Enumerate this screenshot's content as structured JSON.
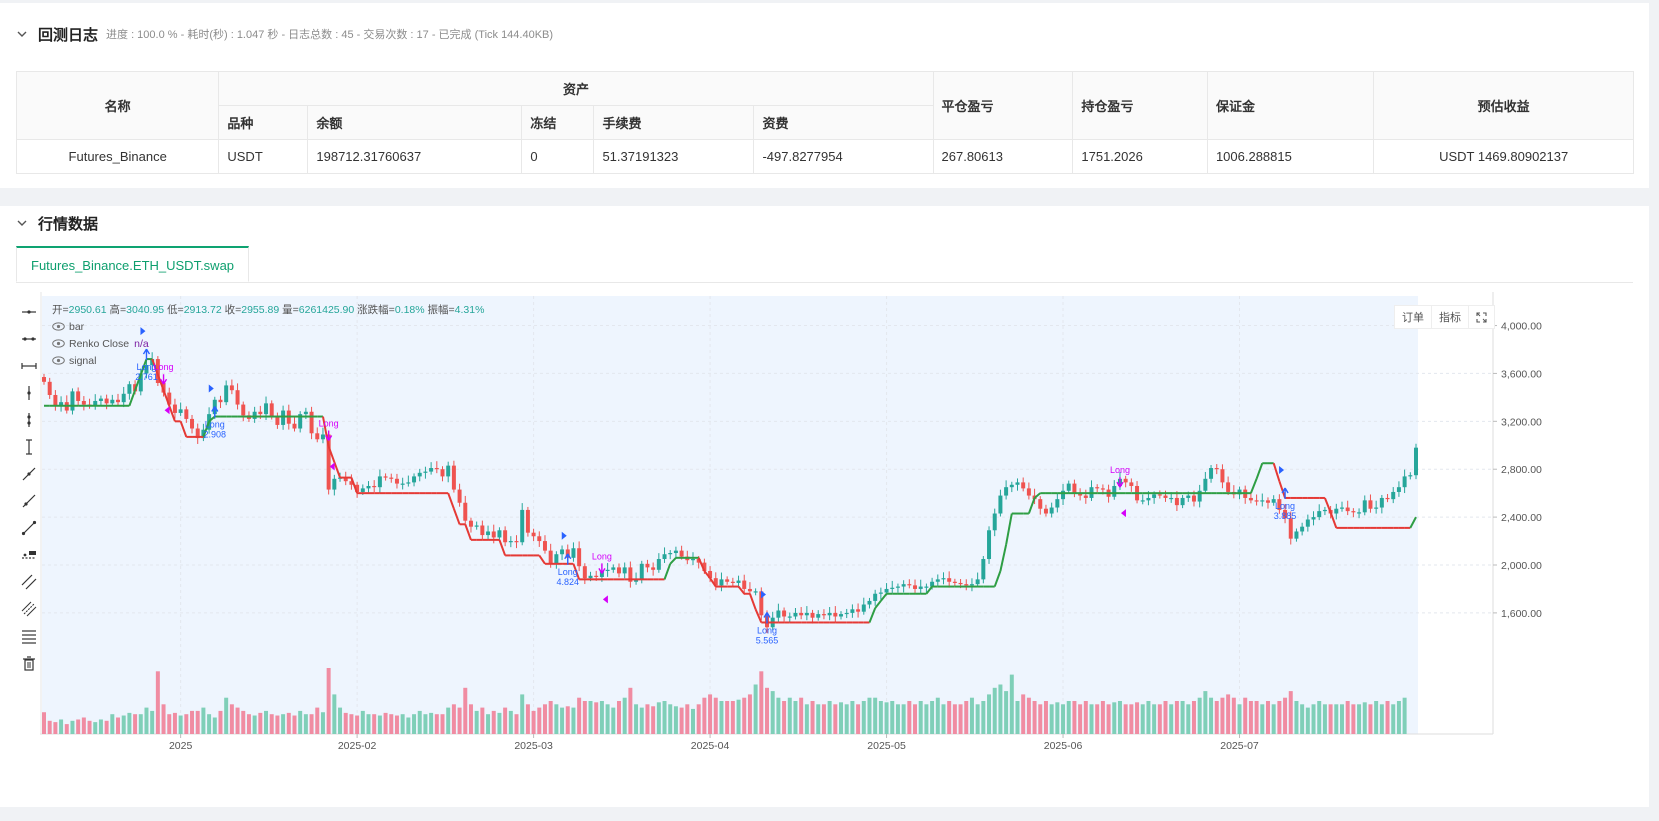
{
  "log_section": {
    "title": "回测日志",
    "meta": "进度 : 100.0 % - 耗时(秒) : 1.047 秒 - 日志总数 : 45 - 交易次数 : 17 - 已完成 (Tick 144.40KB)"
  },
  "assets_table": {
    "col_name": "名称",
    "col_assets": "资产",
    "col_close_pnl": "平仓盈亏",
    "col_position_pnl": "持仓盈亏",
    "col_margin": "保证金",
    "col_est_profit": "预估收益",
    "sub_symbol": "品种",
    "sub_balance": "余额",
    "sub_frozen": "冻结",
    "sub_fee": "手续费",
    "sub_funding": "资费",
    "row": {
      "name": "Futures_Binance",
      "symbol": "USDT",
      "balance": "198712.31760637",
      "frozen": "0",
      "fee": "51.37191323",
      "funding": "-497.8277954",
      "close_pnl": "267.80613",
      "position_pnl": "1751.2026",
      "margin": "1006.288815",
      "est_profit": "USDT 1469.80902137"
    }
  },
  "market_section": {
    "title": "行情数据",
    "tab": "Futures_Binance.ETH_USDT.swap"
  },
  "ohlc": {
    "open_label": "开=",
    "open": "2950.61",
    "high_label": "高=",
    "high": "3040.95",
    "low_label": "低=",
    "low": "2913.72",
    "close_label": "收=",
    "close": "2955.89",
    "vol_label": "量=",
    "vol": "6261425.90",
    "chg_label": "涨跌幅=",
    "chg": "0.18%",
    "amp_label": "振幅=",
    "amp": "4.31%"
  },
  "legend": {
    "bar": "bar",
    "renko": "Renko Close",
    "renko_value": "n/a",
    "signal": "signal"
  },
  "chart_buttons": {
    "order": "订单",
    "indicator": "指标"
  },
  "colors": {
    "up": "#26a69a",
    "down": "#ef5350",
    "renko_up": "#2e9e44",
    "renko_down": "#e53935",
    "vol_up": "#7fcfb8",
    "vol_down": "#f08ca2",
    "buy_marker": "#2962ff",
    "sell_marker": "#d500f9",
    "bg_highlight": "#eef5fe"
  },
  "chart_data": {
    "type": "candlestick",
    "y_ticks": [
      "1,600.00",
      "2,000.00",
      "2,400.00",
      "2,800.00",
      "3,200.00",
      "3,600.00",
      "4,000.00"
    ],
    "x_ticks": [
      "2025",
      "2025-02",
      "2025-03",
      "2025-04",
      "2025-05",
      "2025-06",
      "2025-07"
    ],
    "ylim": [
      1240,
      4230
    ],
    "x_tick_index": [
      24,
      55,
      86,
      117,
      148,
      179,
      210
    ],
    "closes": [
      3530,
      3420,
      3330,
      3360,
      3290,
      3450,
      3370,
      3340,
      3330,
      3370,
      3390,
      3350,
      3380,
      3360,
      3430,
      3510,
      3450,
      3600,
      3670,
      3720,
      3520,
      3440,
      3340,
      3270,
      3300,
      3220,
      3140,
      3060,
      3130,
      3260,
      3380,
      3360,
      3500,
      3460,
      3340,
      3250,
      3220,
      3280,
      3260,
      3350,
      3240,
      3170,
      3290,
      3180,
      3140,
      3260,
      3280,
      3100,
      3050,
      3090,
      2630,
      2720,
      2730,
      2700,
      2670,
      2610,
      2640,
      2660,
      2650,
      2740,
      2730,
      2720,
      2680,
      2680,
      2690,
      2740,
      2770,
      2780,
      2810,
      2800,
      2740,
      2830,
      2630,
      2520,
      2370,
      2320,
      2330,
      2250,
      2280,
      2230,
      2290,
      2190,
      2200,
      2190,
      2460,
      2270,
      2240,
      2200,
      2120,
      2010,
      2090,
      2130,
      2060,
      2140,
      1990,
      1890,
      1910,
      1900,
      1950,
      1960,
      1980,
      1930,
      1980,
      1860,
      1880,
      2010,
      1980,
      1960,
      2050,
      2090,
      2100,
      2120,
      2070,
      2040,
      2050,
      2020,
      1950,
      1890,
      1830,
      1880,
      1860,
      1850,
      1870,
      1800,
      1780,
      1780,
      1580,
      1480,
      1560,
      1620,
      1570,
      1570,
      1600,
      1580,
      1600,
      1560,
      1590,
      1580,
      1600,
      1570,
      1590,
      1600,
      1630,
      1610,
      1670,
      1700,
      1760,
      1770,
      1800,
      1810,
      1820,
      1840,
      1830,
      1800,
      1820,
      1820,
      1860,
      1880,
      1890,
      1860,
      1850,
      1840,
      1830,
      1840,
      1880,
      2050,
      2290,
      2430,
      2580,
      2650,
      2670,
      2690,
      2640,
      2580,
      2550,
      2470,
      2430,
      2480,
      2550,
      2620,
      2680,
      2600,
      2580,
      2560,
      2650,
      2640,
      2630,
      2570,
      2660,
      2720,
      2690,
      2660,
      2540,
      2540,
      2560,
      2590,
      2580,
      2560,
      2560,
      2500,
      2560,
      2580,
      2530,
      2620,
      2720,
      2810,
      2800,
      2690,
      2610,
      2590,
      2630,
      2560,
      2540,
      2530,
      2540,
      2520,
      2550,
      2460,
      2390,
      2220,
      2280,
      2320,
      2380,
      2400,
      2450,
      2460,
      2430,
      2470,
      2480,
      2450,
      2440,
      2440,
      2540,
      2470,
      2480,
      2560,
      2550,
      2610,
      2650,
      2740,
      2750,
      2980
    ],
    "vol_scale": [
      0.33,
      0.2,
      0.18,
      0.22,
      0.15,
      0.2,
      0.22,
      0.25,
      0.2,
      0.18,
      0.22,
      0.2,
      0.3,
      0.25,
      0.28,
      0.32,
      0.3,
      0.3,
      0.4,
      0.35,
      0.95,
      0.45,
      0.3,
      0.32,
      0.28,
      0.3,
      0.35,
      0.35,
      0.4,
      0.3,
      0.25,
      0.35,
      0.55,
      0.45,
      0.4,
      0.35,
      0.3,
      0.28,
      0.32,
      0.35,
      0.3,
      0.28,
      0.3,
      0.32,
      0.28,
      0.35,
      0.3,
      0.3,
      0.4,
      0.33,
      1.0,
      0.6,
      0.4,
      0.32,
      0.3,
      0.28,
      0.35,
      0.3,
      0.3,
      0.28,
      0.32,
      0.3,
      0.28,
      0.3,
      0.25,
      0.3,
      0.35,
      0.3,
      0.32,
      0.3,
      0.3,
      0.4,
      0.45,
      0.4,
      0.7,
      0.45,
      0.35,
      0.4,
      0.3,
      0.35,
      0.32,
      0.4,
      0.35,
      0.3,
      0.6,
      0.45,
      0.35,
      0.4,
      0.45,
      0.5,
      0.45,
      0.4,
      0.42,
      0.4,
      0.55,
      0.5,
      0.5,
      0.48,
      0.5,
      0.45,
      0.4,
      0.5,
      0.55,
      0.7,
      0.45,
      0.4,
      0.45,
      0.42,
      0.48,
      0.5,
      0.45,
      0.42,
      0.4,
      0.45,
      0.38,
      0.45,
      0.55,
      0.6,
      0.55,
      0.5,
      0.5,
      0.5,
      0.52,
      0.55,
      0.6,
      0.75,
      0.95,
      0.7,
      0.65,
      0.55,
      0.5,
      0.55,
      0.5,
      0.55,
      0.45,
      0.5,
      0.45,
      0.45,
      0.5,
      0.45,
      0.48,
      0.45,
      0.5,
      0.45,
      0.5,
      0.55,
      0.55,
      0.5,
      0.48,
      0.5,
      0.45,
      0.45,
      0.5,
      0.45,
      0.5,
      0.45,
      0.5,
      0.55,
      0.45,
      0.5,
      0.45,
      0.45,
      0.5,
      0.55,
      0.45,
      0.5,
      0.6,
      0.7,
      0.75,
      0.65,
      0.9,
      0.5,
      0.6,
      0.55,
      0.5,
      0.45,
      0.5,
      0.45,
      0.48,
      0.45,
      0.5,
      0.5,
      0.45,
      0.5,
      0.45,
      0.45,
      0.5,
      0.45,
      0.48,
      0.5,
      0.45,
      0.45,
      0.48,
      0.45,
      0.5,
      0.45,
      0.45,
      0.5,
      0.45,
      0.5,
      0.5,
      0.45,
      0.5,
      0.55,
      0.65,
      0.55,
      0.5,
      0.55,
      0.6,
      0.55,
      0.45,
      0.55,
      0.5,
      0.5,
      0.45,
      0.5,
      0.45,
      0.5,
      0.55,
      0.65,
      0.5,
      0.45,
      0.4,
      0.45,
      0.5,
      0.45,
      0.45,
      0.45,
      0.45,
      0.5,
      0.45,
      0.45,
      0.48,
      0.45,
      0.5,
      0.45,
      0.5,
      0.45,
      0.5,
      0.55
    ],
    "renko": [
      3330,
      3330,
      3330,
      3330,
      3330,
      3330,
      3330,
      3330,
      3330,
      3330,
      3330,
      3330,
      3330,
      3330,
      3330,
      3330,
      3460,
      3590,
      3720,
      3720,
      3590,
      3460,
      3330,
      3200,
      3200,
      3070,
      3070,
      3070,
      3070,
      3200,
      3240,
      3240,
      3240,
      3240,
      3240,
      3240,
      3240,
      3240,
      3240,
      3240,
      3240,
      3240,
      3240,
      3240,
      3240,
      3240,
      3240,
      3240,
      3240,
      3240,
      2990,
      2860,
      2730,
      2730,
      2730,
      2600,
      2600,
      2600,
      2600,
      2600,
      2600,
      2600,
      2600,
      2600,
      2600,
      2600,
      2600,
      2600,
      2600,
      2600,
      2600,
      2600,
      2470,
      2340,
      2340,
      2210,
      2210,
      2210,
      2210,
      2210,
      2210,
      2080,
      2080,
      2080,
      2080,
      2080,
      2080,
      2080,
      2010,
      2010,
      2010,
      2010,
      2010,
      2010,
      1880,
      1880,
      1880,
      1880,
      1880,
      1880,
      1880,
      1880,
      1880,
      1880,
      1880,
      1880,
      1880,
      1880,
      1880,
      1880,
      2010,
      2060,
      2060,
      2060,
      2060,
      2060,
      1950,
      1890,
      1820,
      1820,
      1820,
      1820,
      1820,
      1760,
      1760,
      1630,
      1520,
      1520,
      1520,
      1520,
      1520,
      1520,
      1520,
      1520,
      1520,
      1520,
      1520,
      1520,
      1520,
      1520,
      1520,
      1520,
      1520,
      1520,
      1520,
      1520,
      1640,
      1700,
      1760,
      1760,
      1760,
      1760,
      1760,
      1760,
      1760,
      1760,
      1820,
      1820,
      1820,
      1820,
      1820,
      1820,
      1820,
      1820,
      1820,
      1820,
      1820,
      1820,
      1950,
      2170,
      2430,
      2430,
      2430,
      2430,
      2560,
      2600,
      2600,
      2600,
      2600,
      2600,
      2600,
      2600,
      2600,
      2600,
      2600,
      2600,
      2600,
      2600,
      2600,
      2600,
      2600,
      2600,
      2600,
      2600,
      2600,
      2600,
      2600,
      2600,
      2600,
      2600,
      2600,
      2600,
      2600,
      2600,
      2600,
      2600,
      2600,
      2600,
      2600,
      2600,
      2600,
      2600,
      2600,
      2720,
      2850,
      2850,
      2850,
      2700,
      2560,
      2560,
      2560,
      2560,
      2560,
      2560,
      2560,
      2560,
      2440,
      2310,
      2310,
      2310,
      2310,
      2310,
      2310,
      2310,
      2310,
      2310,
      2310,
      2310,
      2310,
      2310,
      2310,
      2400,
      2400,
      2400,
      2400,
      2530,
      2530,
      2530,
      2650,
      2720
    ],
    "signals": [
      {
        "i": 18,
        "label": "Long",
        "value": "2.761",
        "kind": "buy"
      },
      {
        "i": 30,
        "label": "Long",
        "value": "2.908",
        "kind": "buy"
      },
      {
        "i": 92,
        "label": "Long",
        "value": "4.824",
        "kind": "buy"
      },
      {
        "i": 127,
        "label": "Long",
        "value": "5.565",
        "kind": "buy"
      },
      {
        "i": 218,
        "label": "Long",
        "value": "3.885",
        "kind": "buy"
      },
      {
        "i": 21,
        "label": "Long",
        "value": "",
        "kind": "sell"
      },
      {
        "i": 50,
        "label": "Long",
        "value": "",
        "kind": "sell"
      },
      {
        "i": 98,
        "label": "Long",
        "value": "",
        "kind": "sell"
      },
      {
        "i": 189,
        "label": "Long",
        "value": "",
        "kind": "sell"
      }
    ]
  }
}
